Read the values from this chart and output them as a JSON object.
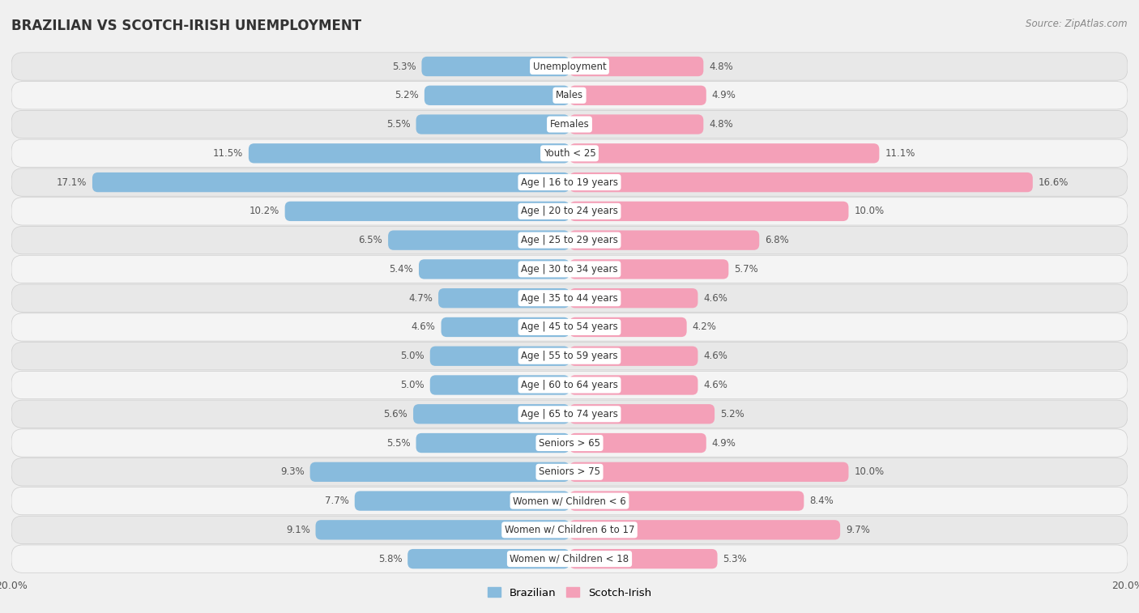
{
  "title": "BRAZILIAN VS SCOTCH-IRISH UNEMPLOYMENT",
  "source": "Source: ZipAtlas.com",
  "categories": [
    "Unemployment",
    "Males",
    "Females",
    "Youth < 25",
    "Age | 16 to 19 years",
    "Age | 20 to 24 years",
    "Age | 25 to 29 years",
    "Age | 30 to 34 years",
    "Age | 35 to 44 years",
    "Age | 45 to 54 years",
    "Age | 55 to 59 years",
    "Age | 60 to 64 years",
    "Age | 65 to 74 years",
    "Seniors > 65",
    "Seniors > 75",
    "Women w/ Children < 6",
    "Women w/ Children 6 to 17",
    "Women w/ Children < 18"
  ],
  "brazilian": [
    5.3,
    5.2,
    5.5,
    11.5,
    17.1,
    10.2,
    6.5,
    5.4,
    4.7,
    4.6,
    5.0,
    5.0,
    5.6,
    5.5,
    9.3,
    7.7,
    9.1,
    5.8
  ],
  "scotch_irish": [
    4.8,
    4.9,
    4.8,
    11.1,
    16.6,
    10.0,
    6.8,
    5.7,
    4.6,
    4.2,
    4.6,
    4.6,
    5.2,
    4.9,
    10.0,
    8.4,
    9.7,
    5.3
  ],
  "max_val": 20.0,
  "bar_height": 0.68,
  "bg_color": "#f0f0f0",
  "row_color_even": "#e8e8e8",
  "row_color_odd": "#f4f4f4",
  "blue_color": "#88bbdd",
  "pink_color": "#f4a0b8",
  "label_fontsize": 8.5,
  "title_fontsize": 12,
  "source_fontsize": 8.5,
  "value_color": "#555555"
}
